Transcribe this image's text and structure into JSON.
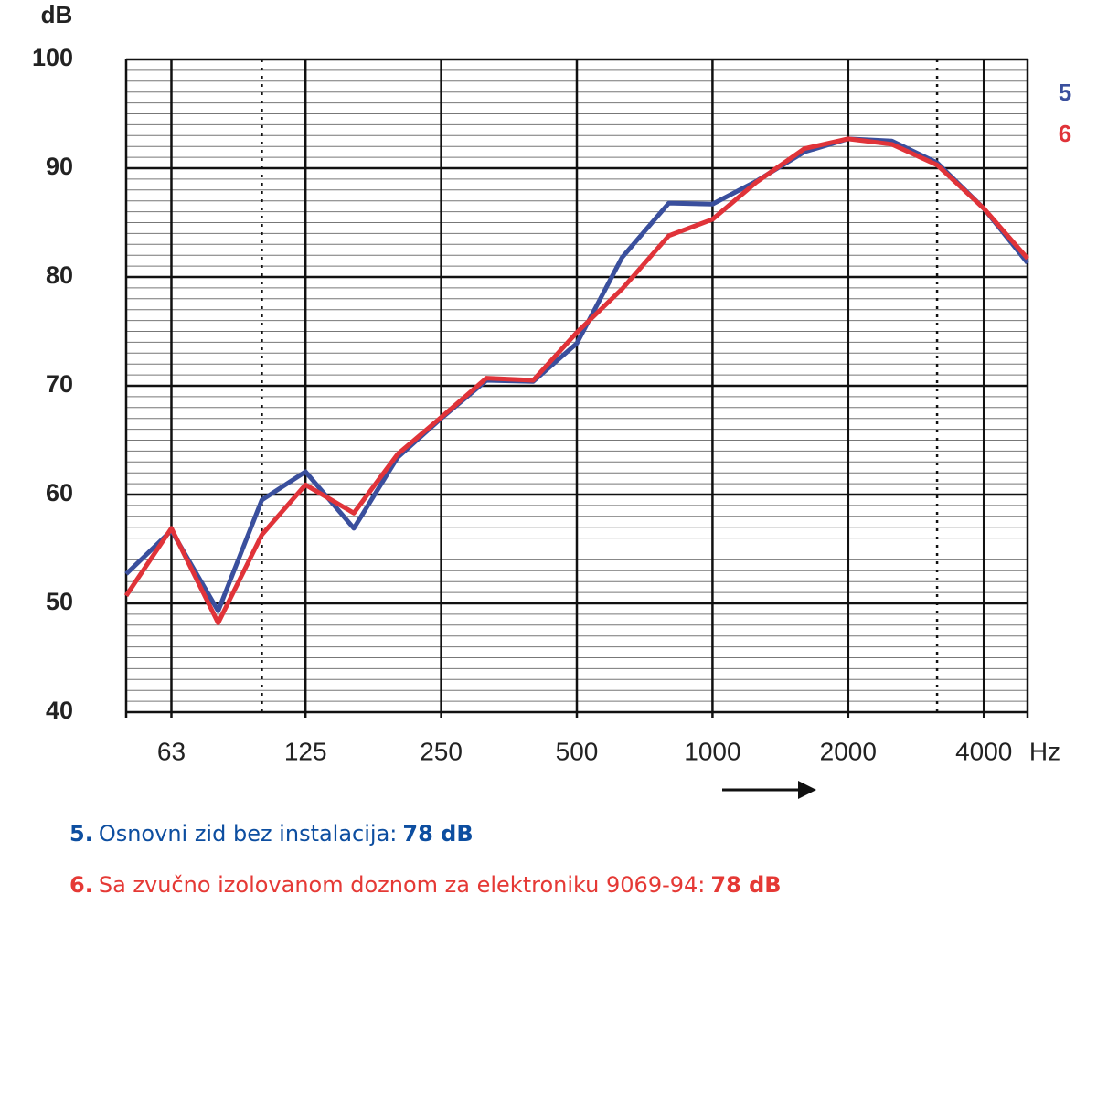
{
  "chart_data": {
    "type": "line",
    "y_label": "dB",
    "x_label": "Hz",
    "xscale": "log",
    "x": [
      50,
      63,
      80,
      100,
      125,
      160,
      200,
      250,
      315,
      400,
      500,
      630,
      800,
      1000,
      1250,
      1600,
      2000,
      2500,
      3150,
      4000,
      5000
    ],
    "series": [
      {
        "name": "5",
        "color": "#3a4f9d",
        "values": [
          52.7,
          56.7,
          49.3,
          59.5,
          62.1,
          56.9,
          63.4,
          67.0,
          70.5,
          70.4,
          73.9,
          81.8,
          86.8,
          86.7,
          88.8,
          91.5,
          92.7,
          92.5,
          90.5,
          86.3,
          81.3
        ]
      },
      {
        "name": "6",
        "color": "#e03339",
        "values": [
          50.7,
          56.9,
          48.2,
          56.3,
          60.9,
          58.3,
          63.7,
          67.1,
          70.7,
          70.5,
          74.9,
          78.9,
          83.8,
          85.3,
          88.7,
          91.8,
          92.7,
          92.2,
          90.3,
          86.3,
          81.7
        ]
      }
    ],
    "xlim": [
      50,
      5000
    ],
    "xticks": [
      63,
      125,
      250,
      500,
      1000,
      2000,
      4000
    ],
    "xdotted": [
      100,
      3150
    ],
    "ylim": [
      40,
      100
    ],
    "yticks": [
      40,
      50,
      60,
      70,
      80,
      90,
      100
    ],
    "yminorticks": [
      41,
      42,
      43,
      44,
      45,
      46,
      47,
      48,
      49,
      51,
      52,
      53,
      54,
      55,
      56,
      57,
      58,
      59,
      61,
      62,
      63,
      64,
      65,
      66,
      67,
      68,
      69,
      71,
      72,
      73,
      74,
      75,
      76,
      77,
      78,
      79,
      81,
      82,
      83,
      84,
      85,
      86,
      87,
      88,
      89,
      91,
      92,
      93,
      94,
      95,
      96,
      97,
      98,
      99
    ],
    "grid": true
  },
  "captions": [
    {
      "number": "5.",
      "text": "Osnovni zid bez instalacija:",
      "value": "78 dB",
      "color": "#0d4ea0"
    },
    {
      "number": "6.",
      "text": "Sa zvučno izolovanom doznom za elektroniku 9069-94:",
      "value": "78 dB",
      "color": "#e53935"
    }
  ]
}
